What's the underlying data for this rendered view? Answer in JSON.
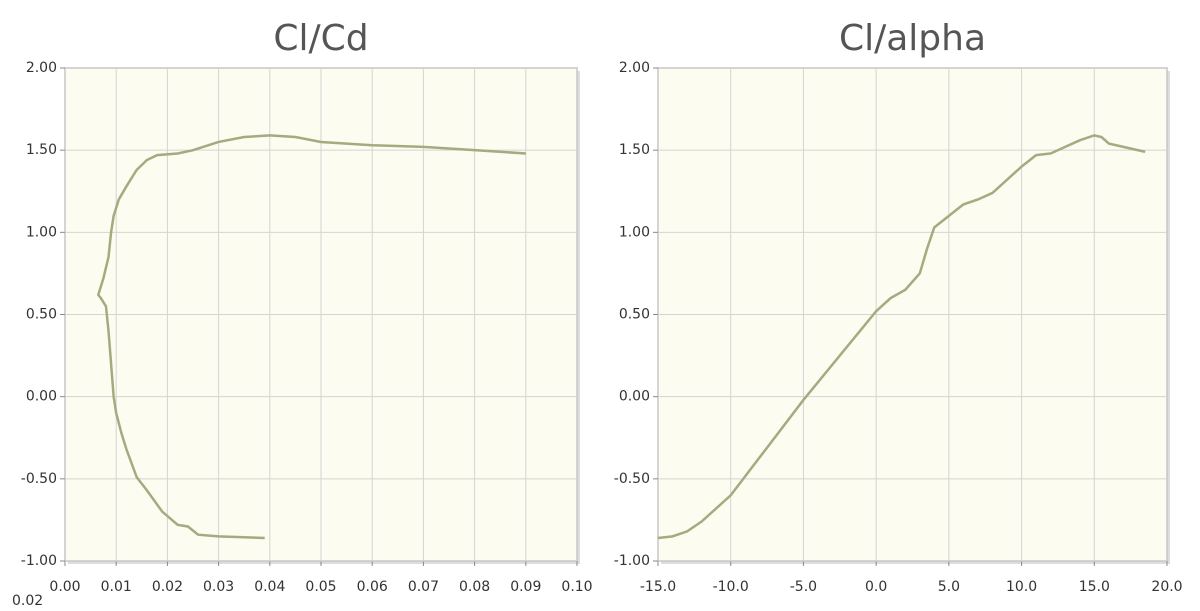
{
  "chart_data": [
    {
      "type": "line",
      "title": "Cl/Cd",
      "color": "#a3ab7f",
      "grid": true,
      "x": [
        0.039,
        0.03,
        0.026,
        0.024,
        0.022,
        0.019,
        0.016,
        0.014,
        0.012,
        0.011,
        0.01,
        0.0095,
        0.009,
        0.0085,
        0.008,
        0.007,
        0.0065,
        0.0075,
        0.0085,
        0.009,
        0.0095,
        0.0105,
        0.012,
        0.014,
        0.016,
        0.018,
        0.022,
        0.025,
        0.03,
        0.035,
        0.04,
        0.045,
        0.05,
        0.06,
        0.07,
        0.08,
        0.09
      ],
      "series": [
        {
          "values": [
            -0.86,
            -0.85,
            -0.84,
            -0.79,
            -0.78,
            -0.7,
            -0.57,
            -0.49,
            -0.32,
            -0.22,
            -0.1,
            0.0,
            0.2,
            0.4,
            0.55,
            0.6,
            0.62,
            0.72,
            0.85,
            1.0,
            1.1,
            1.2,
            1.28,
            1.38,
            1.44,
            1.47,
            1.48,
            1.5,
            1.55,
            1.58,
            1.59,
            1.58,
            1.55,
            1.53,
            1.52,
            1.5,
            1.48
          ]
        }
      ],
      "xlim": [
        0,
        0.1
      ],
      "ylim": [
        -1,
        2
      ],
      "xticks": [
        {
          "value": 0,
          "label": "0.00"
        },
        {
          "value": 0.01,
          "label": "0.01"
        },
        {
          "value": 0.02,
          "label": "0.02"
        },
        {
          "value": 0.03,
          "label": "0.03"
        },
        {
          "value": 0.04,
          "label": "0.04"
        },
        {
          "value": 0.05,
          "label": "0.05"
        },
        {
          "value": 0.06,
          "label": "0.06"
        },
        {
          "value": 0.07,
          "label": "0.07"
        },
        {
          "value": 0.08,
          "label": "0.08"
        },
        {
          "value": 0.09,
          "label": "0.09"
        },
        {
          "value": 0.1,
          "label": "0.10"
        }
      ],
      "yticks": [
        {
          "value": 2,
          "label": "2.00"
        },
        {
          "value": 1.5,
          "label": "1.50"
        },
        {
          "value": 1,
          "label": "1.00"
        },
        {
          "value": 0.5,
          "label": "0.50"
        },
        {
          "value": 0,
          "label": "0.00"
        },
        {
          "value": -0.5,
          "label": "-0.50"
        },
        {
          "value": -1,
          "label": "-1.00"
        }
      ],
      "annotations": [
        "0.02"
      ]
    },
    {
      "type": "line",
      "title": "Cl/alpha",
      "color": "#a3ab7f",
      "grid": true,
      "x": [
        -15,
        -14,
        -13,
        -12,
        -10,
        -5,
        0,
        1,
        2,
        3,
        3.5,
        4,
        5,
        6,
        7,
        8,
        10,
        11,
        12,
        13,
        14,
        15,
        15.5,
        16,
        17,
        18.5
      ],
      "series": [
        {
          "values": [
            -0.86,
            -0.85,
            -0.82,
            -0.76,
            -0.6,
            -0.02,
            0.52,
            0.6,
            0.65,
            0.75,
            0.9,
            1.03,
            1.1,
            1.17,
            1.2,
            1.24,
            1.4,
            1.47,
            1.48,
            1.52,
            1.56,
            1.59,
            1.58,
            1.54,
            1.52,
            1.49
          ]
        }
      ],
      "xlim": [
        -15,
        20
      ],
      "ylim": [
        -1,
        2
      ],
      "xticks": [
        {
          "value": -15,
          "label": "-15.0"
        },
        {
          "value": -10,
          "label": "-10.0"
        },
        {
          "value": -5,
          "label": "-5.0"
        },
        {
          "value": 0,
          "label": "0.0"
        },
        {
          "value": 5,
          "label": "5.0"
        },
        {
          "value": 10,
          "label": "10.0"
        },
        {
          "value": 15,
          "label": "15.0"
        },
        {
          "value": 20,
          "label": "20.0"
        }
      ],
      "yticks": [
        {
          "value": 2,
          "label": "2.00"
        },
        {
          "value": 1.5,
          "label": "1.50"
        },
        {
          "value": 1,
          "label": "1.00"
        },
        {
          "value": 0.5,
          "label": "0.50"
        },
        {
          "value": 0,
          "label": "0.00"
        },
        {
          "value": -0.5,
          "label": "-0.50"
        },
        {
          "value": -1,
          "label": "-1.00"
        }
      ]
    }
  ]
}
